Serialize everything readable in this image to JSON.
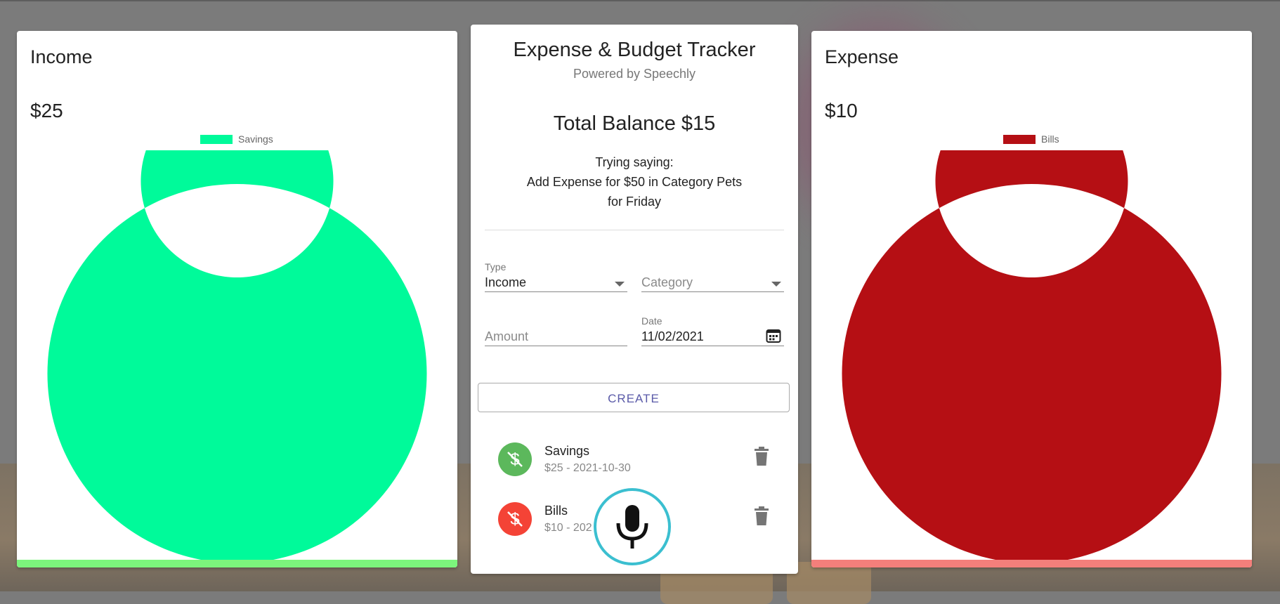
{
  "income": {
    "title": "Income",
    "amount": "$25",
    "legend_label": "Savings",
    "color": "#00fa9a",
    "bar_color": "#7cf57c"
  },
  "expense": {
    "title": "Expense",
    "amount": "$10",
    "legend_label": "Bills",
    "color": "#b50f14",
    "bar_color": "#f47f7b"
  },
  "chart_data": [
    {
      "type": "pie",
      "categories": [
        "Savings"
      ],
      "values": [
        25
      ],
      "legend_placement": "top"
    },
    {
      "type": "pie",
      "categories": [
        "Bills"
      ],
      "values": [
        10
      ],
      "legend_placement": "top"
    }
  ],
  "main": {
    "title": "Expense & Budget Tracker",
    "subtitle": "Powered by Speechly",
    "balance": "Total Balance $15",
    "hint_line1": "Trying saying:",
    "hint_line2": "Add Expense for $50 in Category Pets",
    "hint_line3": "for Friday"
  },
  "form": {
    "type_label": "Type",
    "type_value": "Income",
    "category_placeholder": "Category",
    "amount_placeholder": "Amount",
    "date_label": "Date",
    "date_value": "11/02/2021",
    "create_label": "CREATE"
  },
  "transactions": [
    {
      "name": "Savings",
      "detail": "$25 - 2021-10-30",
      "color": "#5cb85c",
      "icon": "money-off-icon"
    },
    {
      "name": "Bills",
      "detail": "$10 - 202",
      "color": "#f44336",
      "icon": "money-off-icon"
    }
  ],
  "mic": {
    "icon": "microphone-icon",
    "ring_color": "#3bbfd0"
  }
}
